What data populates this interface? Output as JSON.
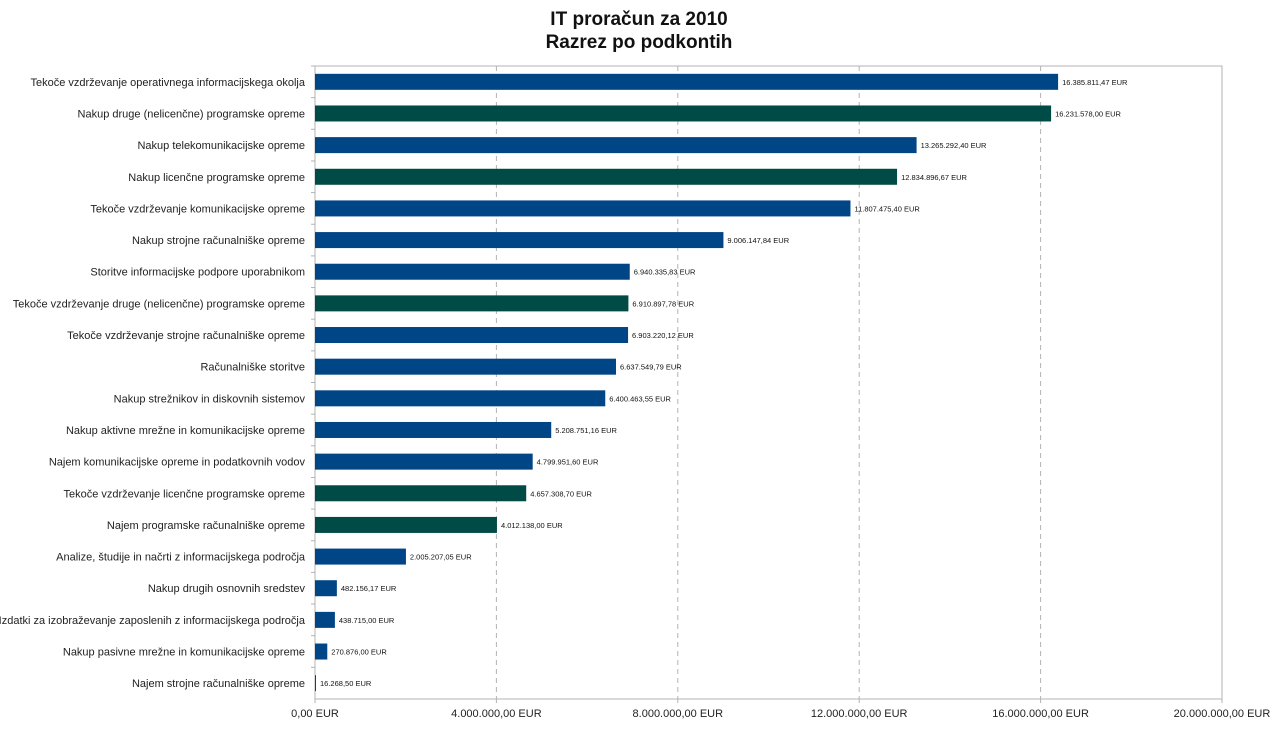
{
  "chart_data": {
    "type": "bar",
    "orientation": "horizontal",
    "title": "IT proračun za 2010",
    "subtitle": "Razrez po podkontih",
    "xlim": [
      0,
      20000000
    ],
    "x_ticks": [
      "0,00 EUR",
      "4.000.000,00 EUR",
      "8.000.000,00 EUR",
      "12.000.000,00 EUR",
      "16.000.000,00 EUR",
      "20.000.000,00 EUR"
    ],
    "x_tick_values": [
      0,
      4000000,
      8000000,
      12000000,
      16000000,
      20000000
    ],
    "grid": "vertical dashed",
    "colors": {
      "blue": "#004586",
      "green": "#004B45"
    },
    "bars": [
      {
        "label": "Tekoče vzdrževanje operativnega informacijskega okolja",
        "value": 16385811.47,
        "value_label": "16.385.811,47 EUR",
        "color": "blue"
      },
      {
        "label": "Nakup druge (nelicenčne) programske opreme",
        "value": 16231578.0,
        "value_label": "16.231.578,00 EUR",
        "color": "green"
      },
      {
        "label": "Nakup telekomunikacijske opreme",
        "value": 13265292.4,
        "value_label": "13.265.292,40 EUR",
        "color": "blue"
      },
      {
        "label": "Nakup licenčne programske opreme",
        "value": 12834896.67,
        "value_label": "12.834.896,67 EUR",
        "color": "green"
      },
      {
        "label": "Tekoče vzdrževanje komunikacijske opreme",
        "value": 11807475.4,
        "value_label": "11.807.475,40 EUR",
        "color": "blue"
      },
      {
        "label": "Nakup strojne računalniške opreme",
        "value": 9006147.84,
        "value_label": "9.006.147,84 EUR",
        "color": "blue"
      },
      {
        "label": "Storitve informacijske podpore uporabnikom",
        "value": 6940335.83,
        "value_label": "6.940.335,83 EUR",
        "color": "blue"
      },
      {
        "label": "Tekoče vzdrževanje druge (nelicenčne) programske opreme",
        "value": 6910897.78,
        "value_label": "6.910.897,78 EUR",
        "color": "green"
      },
      {
        "label": "Tekoče vzdrževanje strojne računalniške opreme",
        "value": 6903220.12,
        "value_label": "6.903.220,12 EUR",
        "color": "blue"
      },
      {
        "label": "Računalniške storitve",
        "value": 6637549.79,
        "value_label": "6.637.549,79 EUR",
        "color": "blue"
      },
      {
        "label": "Nakup strežnikov in diskovnih sistemov",
        "value": 6400463.55,
        "value_label": "6.400.463,55 EUR",
        "color": "blue"
      },
      {
        "label": "Nakup aktivne mrežne in komunikacijske opreme",
        "value": 5208751.16,
        "value_label": "5.208.751,16 EUR",
        "color": "blue"
      },
      {
        "label": "Najem komunikacijske opreme in podatkovnih vodov",
        "value": 4799951.6,
        "value_label": "4.799.951,60 EUR",
        "color": "blue"
      },
      {
        "label": "Tekoče vzdrževanje licenčne programske opreme",
        "value": 4657308.7,
        "value_label": "4.657.308,70 EUR",
        "color": "green"
      },
      {
        "label": "Najem programske računalniške opreme",
        "value": 4012138.0,
        "value_label": "4.012.138,00 EUR",
        "color": "green"
      },
      {
        "label": "Analize, študije in načrti z informacijskega področja",
        "value": 2005207.05,
        "value_label": "2.005.207,05 EUR",
        "color": "blue"
      },
      {
        "label": "Nakup drugih osnovnih sredstev",
        "value": 482156.17,
        "value_label": "482.156,17 EUR",
        "color": "blue"
      },
      {
        "label": "Izdatki za izobraževanje zaposlenih z informacijskega področja",
        "value": 438715.0,
        "value_label": "438.715,00 EUR",
        "color": "blue"
      },
      {
        "label": "Nakup pasivne mrežne in komunikacijske opreme",
        "value": 270876.0,
        "value_label": "270.876,00 EUR",
        "color": "blue"
      },
      {
        "label": "Najem strojne računalniške opreme",
        "value": 16268.5,
        "value_label": "16.268,50 EUR",
        "color": "blue"
      }
    ]
  }
}
